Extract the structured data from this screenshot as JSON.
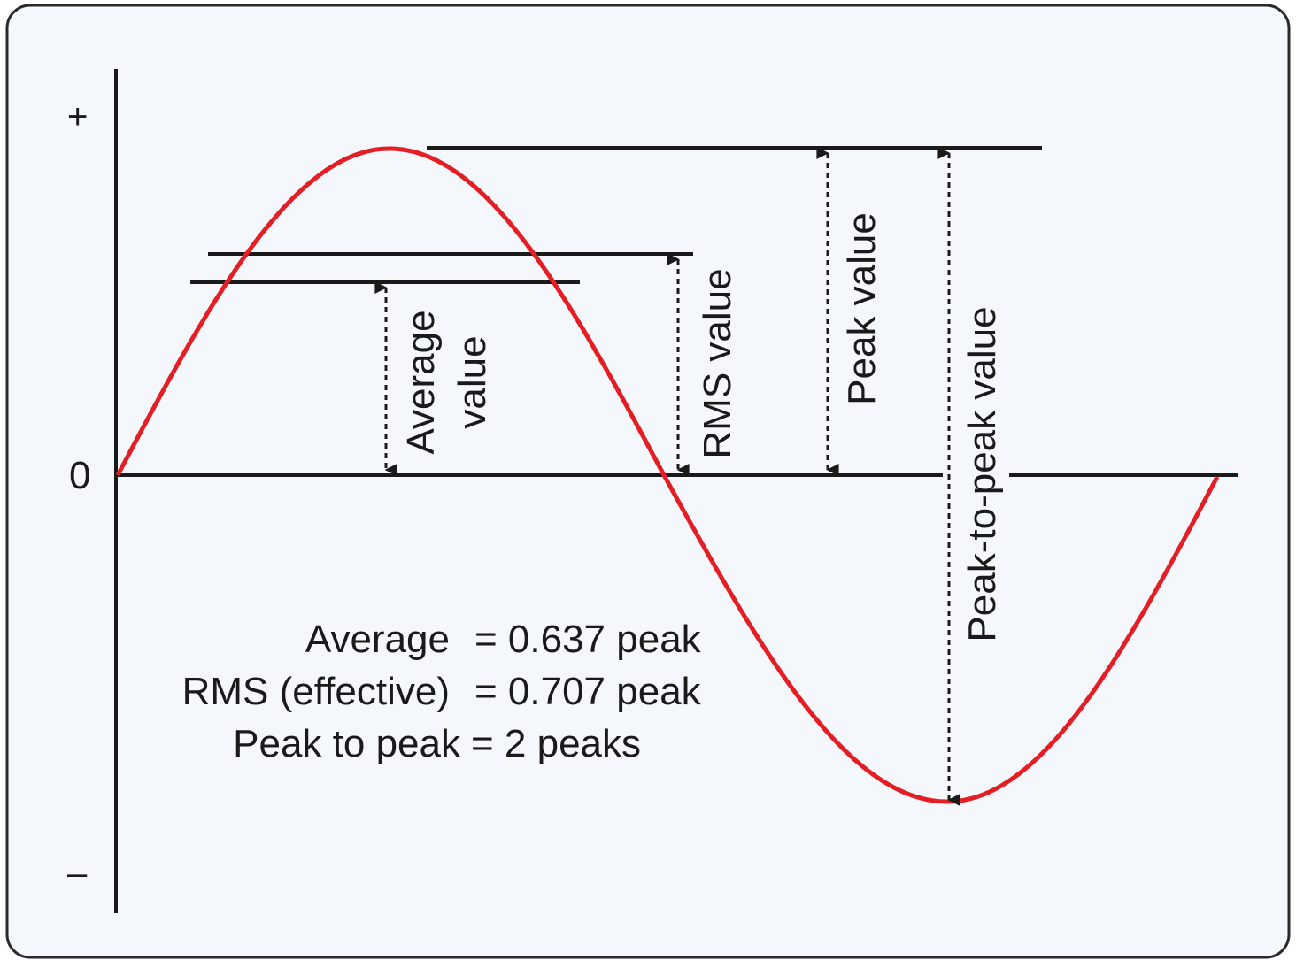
{
  "axis": {
    "plus_label": "+",
    "zero_label": "0",
    "minus_label": "–"
  },
  "labels": {
    "average_line1": "Average",
    "average_line2": "value",
    "rms": "RMS value",
    "peak": "Peak value",
    "peak_to_peak": "Peak-to-peak value"
  },
  "formulas": {
    "average_name": "Average",
    "average_value": "= 0.637 peak",
    "rms_name": "RMS (effective)",
    "rms_value": "= 0.707 peak",
    "p2p_name": "Peak to peak",
    "p2p_value": "= 2 peaks"
  },
  "colors": {
    "background": "#f4f8fc",
    "border": "#2a2a2a",
    "wave": "#e31e24",
    "line": "#1a1a1a"
  },
  "levels": {
    "average_fraction_of_peak": 0.637,
    "rms_fraction_of_peak": 0.707,
    "peak_fraction_of_peak": 1.0
  }
}
